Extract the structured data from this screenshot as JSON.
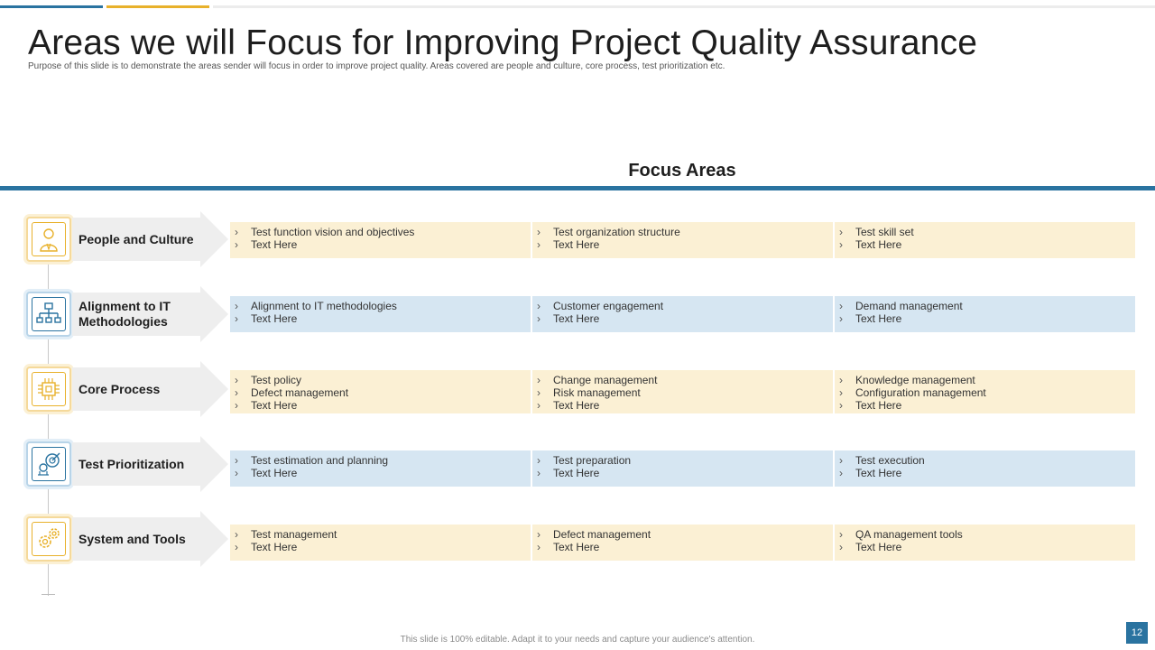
{
  "title": "Areas we will Focus for Improving Project Quality Assurance",
  "subtitle": "Purpose of this slide is to demonstrate the areas sender will focus in order to improve project quality. Areas covered are people and culture, core process, test prioritization etc.",
  "focus_title": "Focus Areas",
  "colors": {
    "blue": "#2a73a0",
    "yellow": "#e8b12b",
    "light_yellow": "#fbf0d4",
    "light_blue": "#d6e6f2"
  },
  "rows": [
    {
      "label": "People and Culture",
      "icon": "person-icon",
      "tone": "yellow",
      "cols": [
        [
          "Test  function vision and objectives",
          "Text Here"
        ],
        [
          "Test  organization structure",
          "Text Here"
        ],
        [
          "Test  skill set",
          "Text Here"
        ]
      ]
    },
    {
      "label": "Alignment to IT Methodologies",
      "icon": "hierarchy-icon",
      "tone": "blue",
      "cols": [
        [
          "Alignment to IT methodologies",
          "Text Here"
        ],
        [
          "Customer engagement",
          "Text Here"
        ],
        [
          "Demand management",
          "Text Here"
        ]
      ]
    },
    {
      "label": "Core Process",
      "icon": "chip-icon",
      "tone": "yellow",
      "cols": [
        [
          "Test policy",
          "Defect management",
          "Text Here"
        ],
        [
          "Change management",
          "Risk management",
          "Text Here"
        ],
        [
          "Knowledge management",
          "Configuration management",
          "Text Here"
        ]
      ]
    },
    {
      "label": "Test Prioritization",
      "icon": "target-settings-icon",
      "tone": "blue",
      "cols": [
        [
          "Test estimation and planning",
          "Text Here"
        ],
        [
          "Test preparation",
          "Text Here"
        ],
        [
          "Test execution",
          "Text Here"
        ]
      ]
    },
    {
      "label": "System and Tools",
      "icon": "gears-icon",
      "tone": "yellow",
      "cols": [
        [
          "Test management",
          "Text Here"
        ],
        [
          "Defect management",
          "Text Here"
        ],
        [
          "QA  management tools",
          "Text Here"
        ]
      ]
    }
  ],
  "footer": "This slide is 100% editable. Adapt it to your needs and capture your audience's attention.",
  "page_number": "12"
}
